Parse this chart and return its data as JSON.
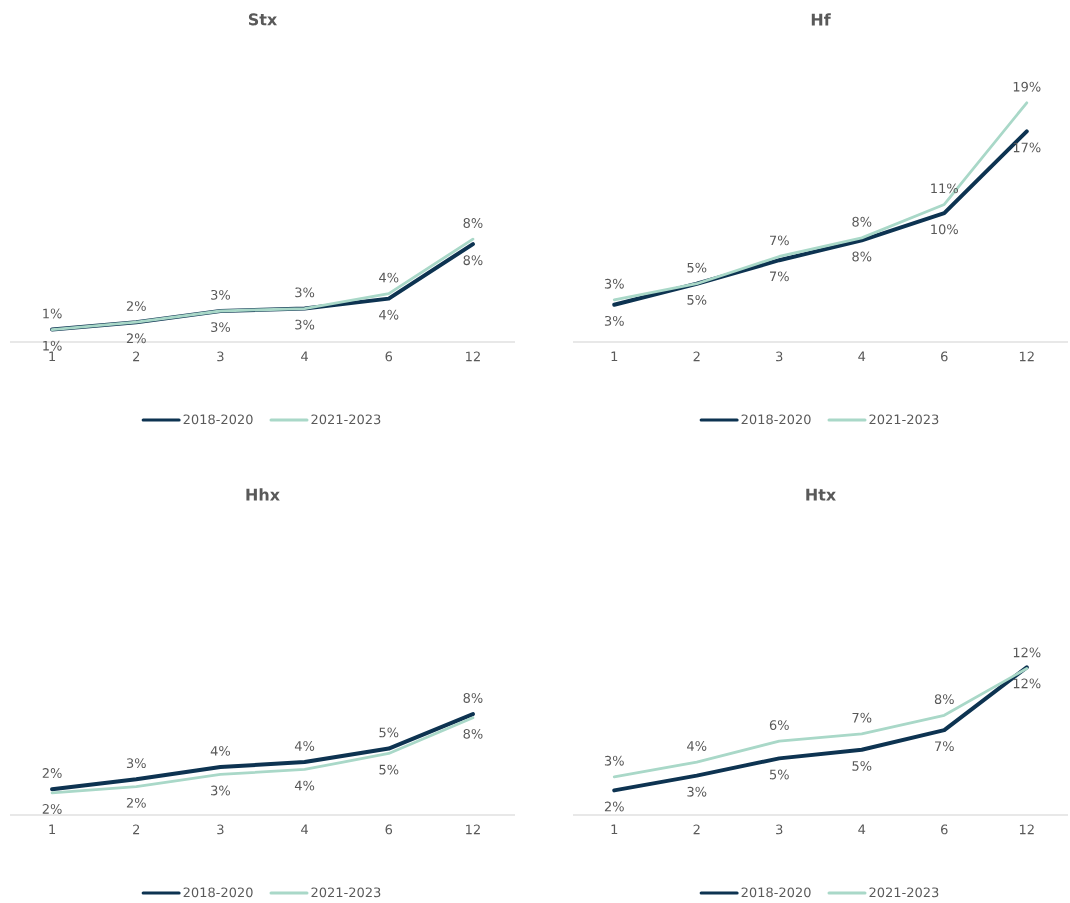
{
  "chart_data": [
    {
      "type": "line",
      "title": "Stx",
      "categories": [
        "1",
        "2",
        "3",
        "4",
        "6",
        "12"
      ],
      "tick_labels": "x",
      "legend": "bottom",
      "series": [
        {
          "name": "2018-2020",
          "color": "#0d3351",
          "values": [
            1.0,
            1.6,
            2.5,
            2.7,
            3.5,
            7.9
          ],
          "value_labels": [
            "1%",
            "2%",
            "3%",
            "3%",
            "4%",
            "8%"
          ]
        },
        {
          "name": "2021-2023",
          "color": "#a9d8c8",
          "values": [
            1.0,
            1.6,
            2.5,
            2.7,
            3.9,
            8.3
          ],
          "value_labels": [
            "1%",
            "2%",
            "3%",
            "3%",
            "4%",
            "8%"
          ]
        }
      ]
    },
    {
      "type": "line",
      "title": "Hf",
      "categories": [
        "1",
        "2",
        "3",
        "4",
        "6",
        "12"
      ],
      "tick_labels": "x",
      "legend": "bottom",
      "series": [
        {
          "name": "2018-2020",
          "color": "#0d3351",
          "values": [
            3.0,
            4.7,
            6.6,
            8.2,
            10.4,
            17.0
          ],
          "value_labels": [
            "3%",
            "5%",
            "7%",
            "8%",
            "10%",
            "17%"
          ]
        },
        {
          "name": "2021-2023",
          "color": "#a9d8c8",
          "values": [
            3.4,
            4.7,
            6.9,
            8.4,
            11.1,
            19.3
          ],
          "value_labels": [
            "3%",
            "5%",
            "7%",
            "8%",
            "11%",
            "19%"
          ]
        }
      ]
    },
    {
      "type": "line",
      "title": "Hhx",
      "categories": [
        "1",
        "2",
        "3",
        "4",
        "6",
        "12"
      ],
      "tick_labels": "x",
      "legend": "bottom",
      "series": [
        {
          "name": "2018-2020",
          "color": "#0d3351",
          "values": [
            2.1,
            2.9,
            3.9,
            4.3,
            5.4,
            8.2
          ],
          "value_labels": [
            "2%",
            "3%",
            "4%",
            "4%",
            "5%",
            "8%"
          ]
        },
        {
          "name": "2021-2023",
          "color": "#a9d8c8",
          "values": [
            1.8,
            2.3,
            3.3,
            3.7,
            5.0,
            7.9
          ],
          "value_labels": [
            "2%",
            "2%",
            "3%",
            "4%",
            "5%",
            "8%"
          ]
        }
      ]
    },
    {
      "type": "line",
      "title": "Htx",
      "categories": [
        "1",
        "2",
        "3",
        "4",
        "6",
        "12"
      ],
      "tick_labels": "x",
      "legend": "bottom",
      "series": [
        {
          "name": "2018-2020",
          "color": "#0d3351",
          "values": [
            2.0,
            3.2,
            4.6,
            5.3,
            6.9,
            12.0
          ],
          "value_labels": [
            "2%",
            "3%",
            "5%",
            "5%",
            "7%",
            "12%"
          ]
        },
        {
          "name": "2021-2023",
          "color": "#a9d8c8",
          "values": [
            3.1,
            4.3,
            6.0,
            6.6,
            8.1,
            11.9
          ],
          "value_labels": [
            "3%",
            "4%",
            "6%",
            "7%",
            "8%",
            "12%"
          ]
        }
      ]
    }
  ]
}
